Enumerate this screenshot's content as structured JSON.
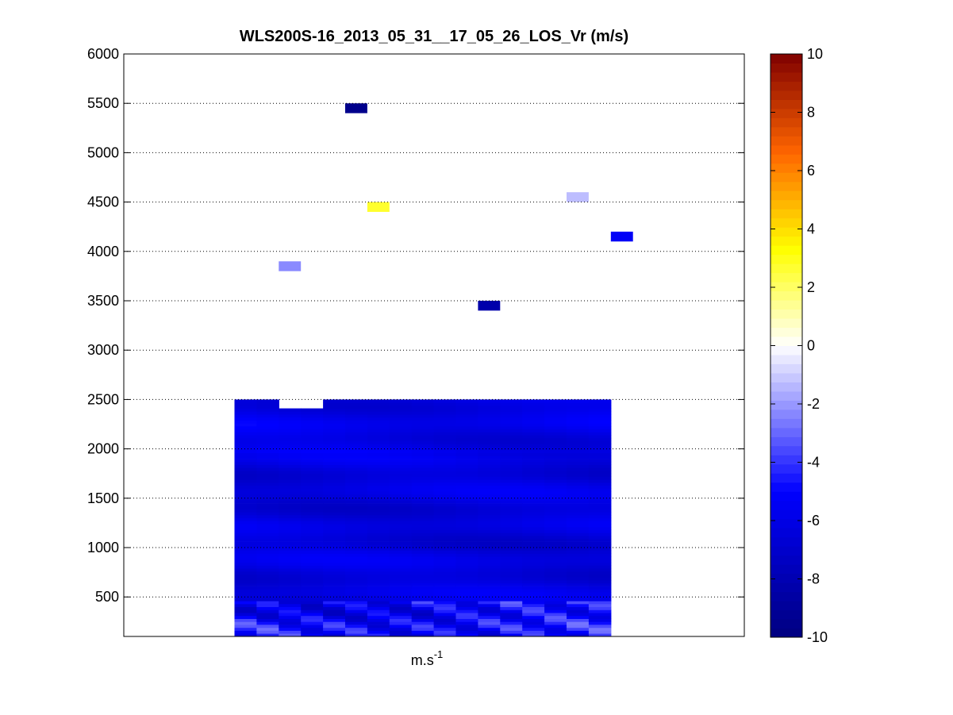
{
  "chart_data": {
    "type": "heatmap",
    "title": "WLS200S-16_2013_05_31__17_05_26_LOS_Vr (m/s)",
    "xlabel": "m.s",
    "xlabel_superscript": "-1",
    "ylabel": "",
    "ylim": [
      100,
      6000
    ],
    "yticks": [
      500,
      1000,
      1500,
      2000,
      2500,
      3000,
      3500,
      4000,
      4500,
      5000,
      5500,
      6000
    ],
    "grid": "horizontal-dotted",
    "colorbar": {
      "range": [
        -10,
        10
      ],
      "ticks": [
        -10,
        -8,
        -6,
        -4,
        -2,
        0,
        2,
        4,
        6,
        8,
        10
      ],
      "colormap": "jet",
      "position": "right"
    },
    "scatter_cells": [
      {
        "column": 10,
        "altitude": 5450,
        "value": -9.5
      },
      {
        "column": 11,
        "altitude": 4450,
        "value": 2.7
      },
      {
        "column": 7,
        "altitude": 3850,
        "value": -2.3
      },
      {
        "column": 16,
        "altitude": 3450,
        "value": -8.3
      },
      {
        "column": 20,
        "altitude": 4550,
        "value": -1.3
      },
      {
        "column": 22,
        "altitude": 4150,
        "value": -5.3
      }
    ],
    "block": {
      "columns": [
        5,
        22
      ],
      "altitude_range": [
        100,
        2500
      ],
      "value_range": [
        -7.5,
        -2.5
      ],
      "missing": {
        "columns": [
          7,
          9
        ],
        "altitude_range": [
          2400,
          2500
        ]
      }
    }
  }
}
